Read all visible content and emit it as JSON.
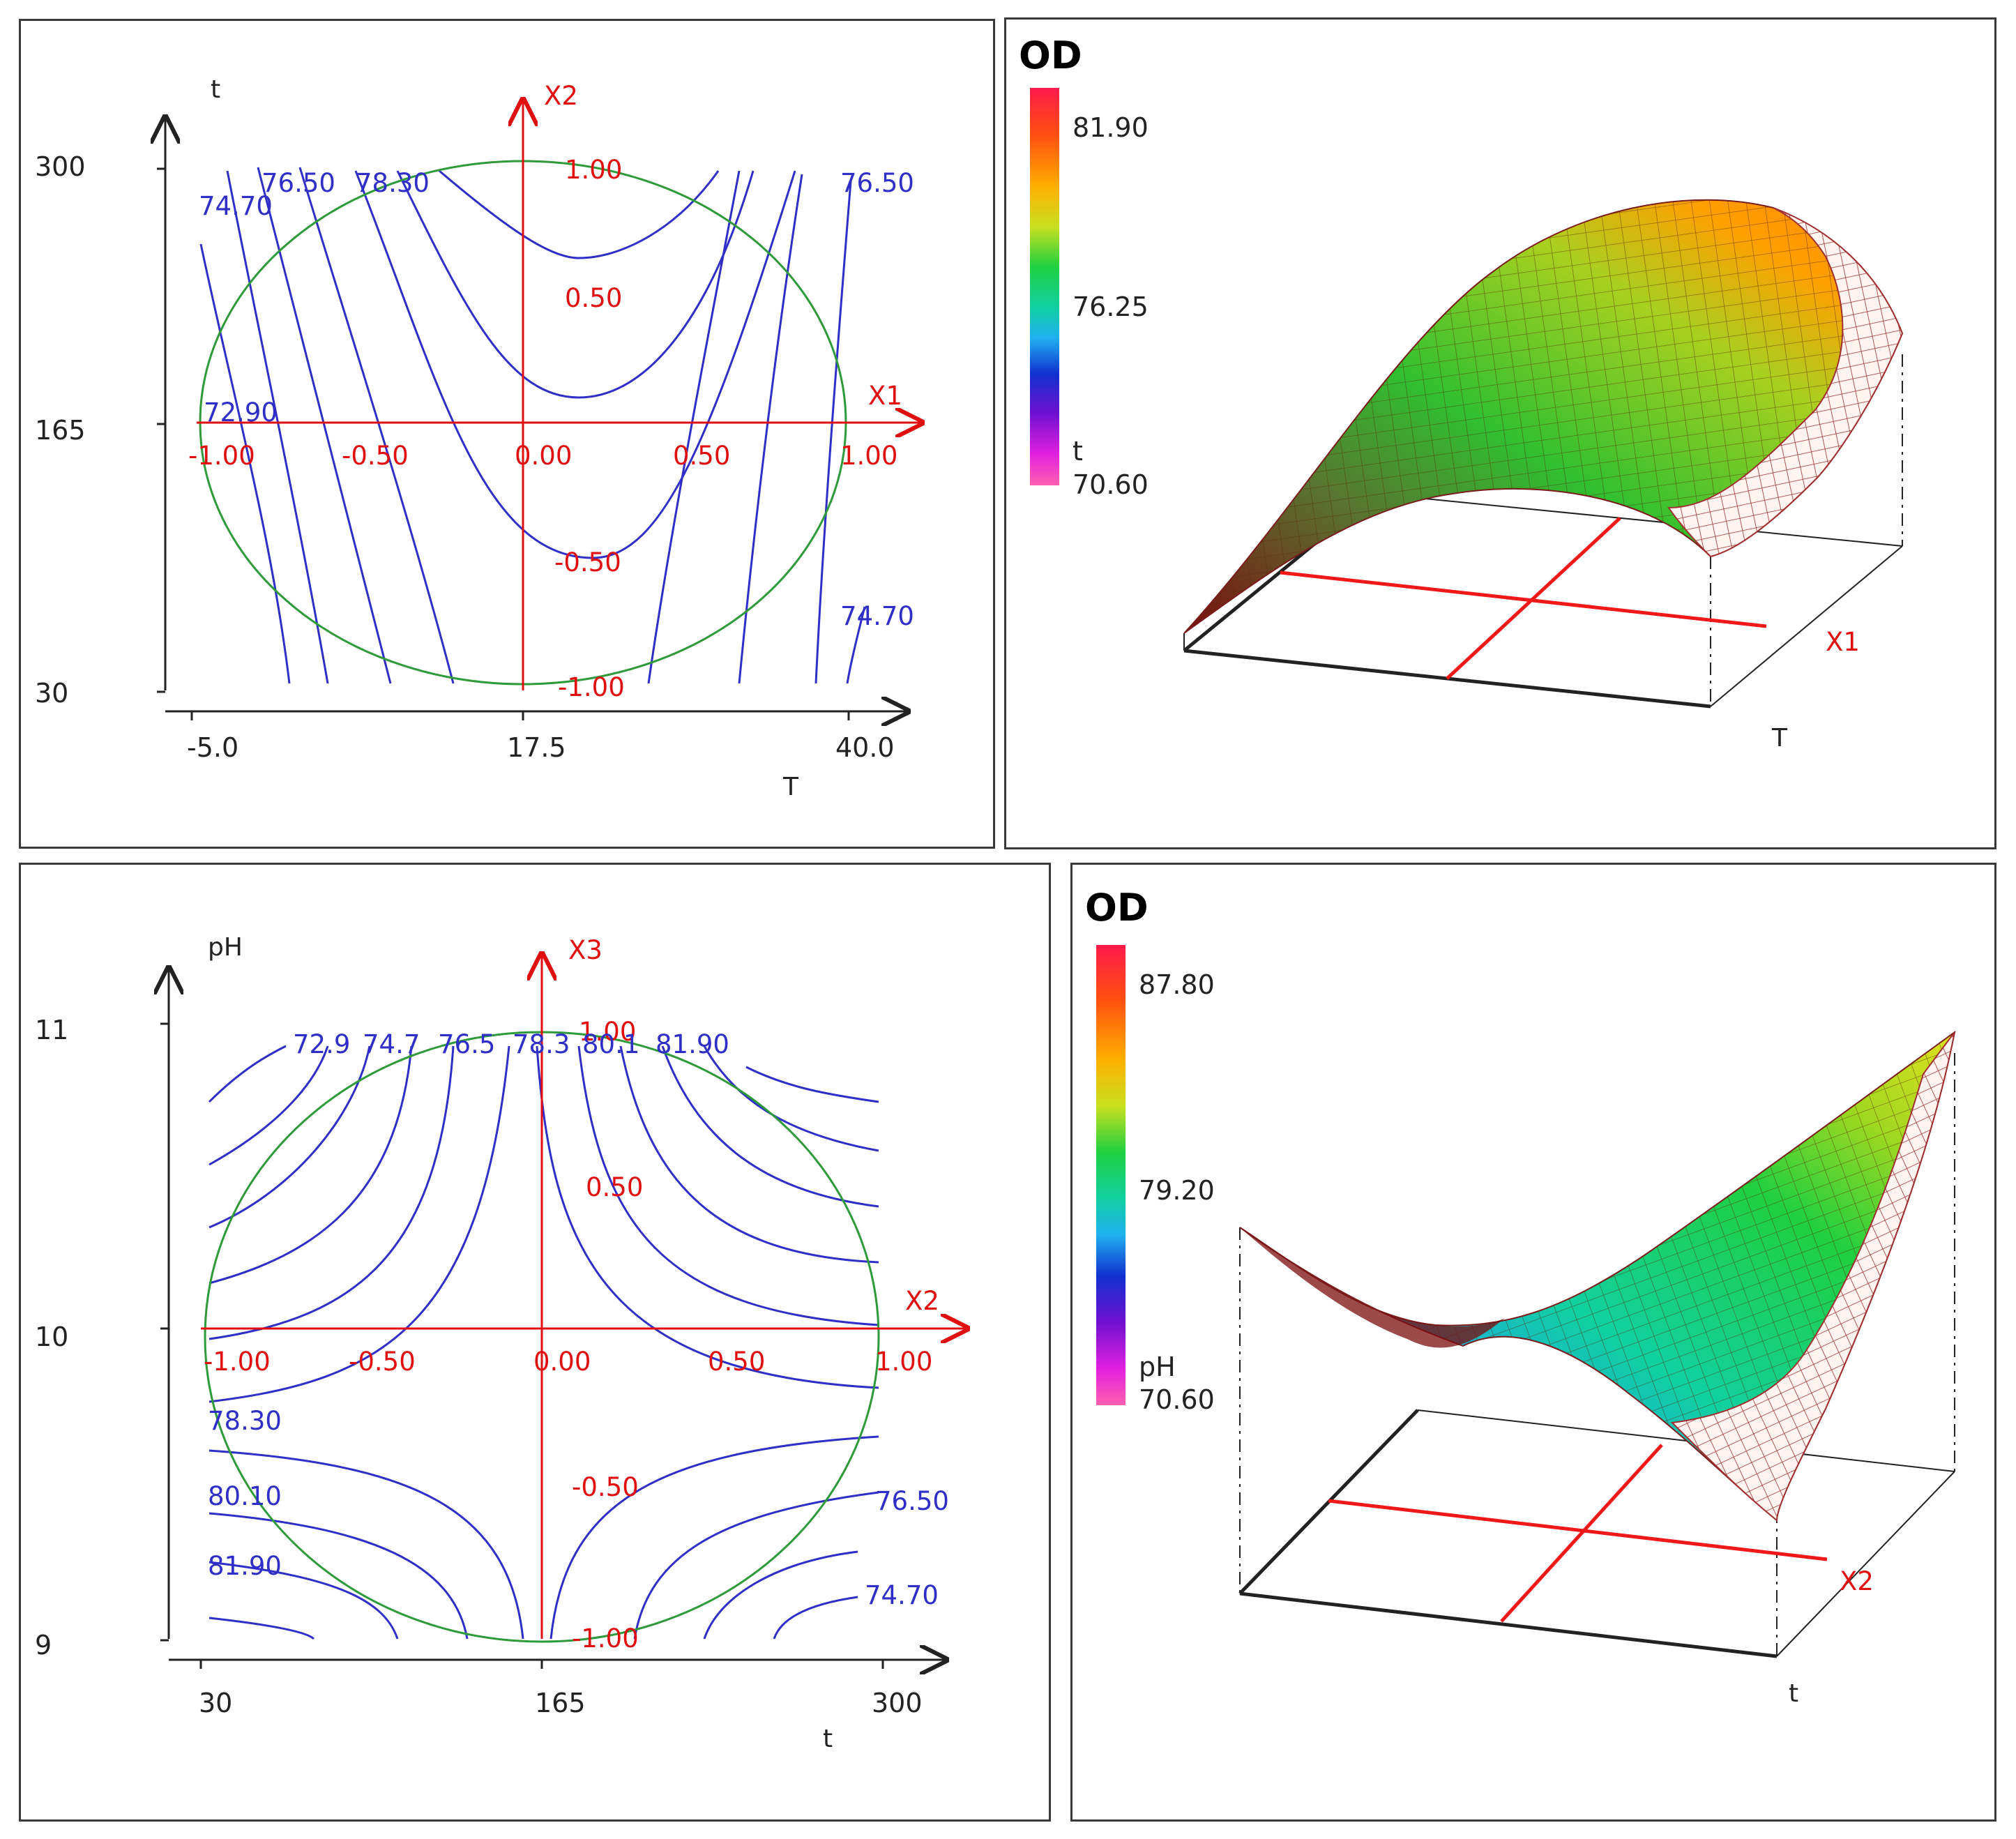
{
  "chart_data": [
    {
      "type": "contour",
      "title": "",
      "xlabel": "T",
      "ylabel": "t",
      "x_ticks": [
        "-5.0",
        "17.5",
        "40.0"
      ],
      "y_ticks": [
        "300",
        "165",
        "30"
      ],
      "coded_x_axis": "X1",
      "coded_y_axis": "X2",
      "coded_x_ticks": [
        "-1.00",
        "-0.50",
        "0.00",
        "0.50",
        "1.00"
      ],
      "coded_y_ticks": [
        "1.00",
        "0.50",
        "-0.50",
        "-1.00"
      ],
      "contour_labels": [
        "74.70",
        "76.50",
        "78.30",
        "72.90",
        "76.50",
        "74.70"
      ],
      "contour_levels": [
        72.9,
        74.7,
        76.5,
        78.3,
        80.1
      ],
      "design_region": "circle"
    },
    {
      "type": "surface",
      "zlabel": "OD",
      "colorbar": {
        "max_label": "81.90",
        "mid_label": "76.25",
        "var_label": "t",
        "min_label": "70.60"
      },
      "x_axis": "X1",
      "x_label": "T",
      "z_range": [
        70.6,
        81.9
      ]
    },
    {
      "type": "contour",
      "title": "",
      "xlabel": "t",
      "ylabel": "pH",
      "x_ticks": [
        "30",
        "165",
        "300"
      ],
      "y_ticks": [
        "11",
        "10",
        "9"
      ],
      "coded_x_axis": "X2",
      "coded_y_axis": "X3",
      "coded_x_ticks": [
        "-1.00",
        "-0.50",
        "0.00",
        "0.50",
        "1.00"
      ],
      "coded_y_ticks": [
        "1.00",
        "0.50",
        "-0.50",
        "-1.00"
      ],
      "contour_labels_top": [
        "72.9",
        "74.7",
        "76.5",
        "78.3",
        "80.1",
        "81.90"
      ],
      "contour_labels": [
        "78.30",
        "80.10",
        "81.90",
        "76.50",
        "74.70"
      ],
      "contour_levels": [
        72.9,
        74.7,
        76.5,
        78.3,
        80.1,
        81.9
      ],
      "design_region": "circle"
    },
    {
      "type": "surface",
      "zlabel": "OD",
      "colorbar": {
        "max_label": "87.80",
        "mid_label": "79.20",
        "var_label": "pH",
        "min_label": "70.60"
      },
      "x_axis": "X2",
      "x_label": "t",
      "z_range": [
        70.6,
        87.8
      ]
    }
  ]
}
